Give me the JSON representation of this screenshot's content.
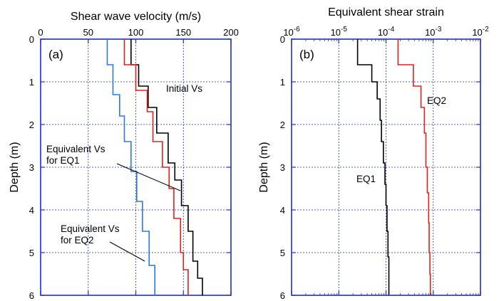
{
  "chart_data": [
    {
      "type": "line",
      "panel_label": "(a)",
      "xlabel": "Shear wave velocity (m/s)",
      "ylabel": "Depth (m)",
      "xlim": [
        0,
        200
      ],
      "ylim": [
        6,
        0
      ],
      "x_position": "top",
      "x_ticks": [
        0,
        50,
        100,
        150,
        200
      ],
      "y_ticks": [
        0,
        1,
        2,
        3,
        4,
        5,
        6
      ],
      "grid": true,
      "series": [
        {
          "name": "Initial Vs",
          "color": "#000000",
          "x": [
            95,
            95,
            103,
            103,
            113,
            113,
            122,
            122,
            134,
            134,
            141,
            141,
            148,
            148,
            155,
            155,
            160,
            160,
            165,
            165,
            170,
            170
          ],
          "y": [
            0,
            0.6,
            0.6,
            1.1,
            1.1,
            1.6,
            1.6,
            2.2,
            2.2,
            2.9,
            2.9,
            3.3,
            3.3,
            3.9,
            3.9,
            4.5,
            4.5,
            5.2,
            5.2,
            5.6,
            5.6,
            6
          ]
        },
        {
          "name": "Equivalent Vs for EQ1",
          "color": "#e0201c",
          "x": [
            88,
            88,
            100,
            100,
            112,
            112,
            118,
            118,
            128,
            128,
            135,
            135,
            140,
            140,
            147,
            147,
            150,
            150,
            155,
            155
          ],
          "y": [
            0,
            0.6,
            0.6,
            1.2,
            1.2,
            1.7,
            1.7,
            2.4,
            2.4,
            3.0,
            3.0,
            3.5,
            3.5,
            4.2,
            4.2,
            5.0,
            5.0,
            5.4,
            5.4,
            6
          ]
        },
        {
          "name": "Equivalent Vs for EQ2",
          "color": "#2a7bdc",
          "x": [
            70,
            70,
            76,
            76,
            83,
            83,
            88,
            88,
            95,
            95,
            101,
            101,
            107,
            107,
            114,
            114,
            120,
            120
          ],
          "y": [
            0,
            0.6,
            0.6,
            1.3,
            1.3,
            1.8,
            1.8,
            2.4,
            2.4,
            3.1,
            3.1,
            3.8,
            3.8,
            4.5,
            4.5,
            5.3,
            5.3,
            6
          ]
        }
      ],
      "annotations": [
        {
          "lines": [
            "Initial Vs"
          ]
        },
        {
          "lines": [
            "Equivalent Vs",
            "for EQ1"
          ]
        },
        {
          "lines": [
            "Equivalent Vs",
            "for EQ2"
          ]
        }
      ]
    },
    {
      "type": "line",
      "panel_label": "(b)",
      "xlabel": "Equivalent shear strain",
      "ylabel": "Depth (m)",
      "xlim": [
        1e-06,
        0.01
      ],
      "xscale": "log",
      "ylim": [
        6,
        0
      ],
      "x_position": "top",
      "x_ticks": [
        {
          "value": 1e-06,
          "base": "10",
          "exp": "-6"
        },
        {
          "value": 1e-05,
          "base": "10",
          "exp": "-5"
        },
        {
          "value": 0.0001,
          "base": "10",
          "exp": "-4"
        },
        {
          "value": 0.001,
          "base": "10",
          "exp": "-3"
        },
        {
          "value": 0.01,
          "base": "10",
          "exp": "-2"
        }
      ],
      "y_ticks": [
        0,
        1,
        2,
        3,
        4,
        5,
        6
      ],
      "grid": true,
      "series": [
        {
          "name": "EQ1",
          "color": "#000000",
          "x": [
            2.5e-05,
            2.5e-05,
            5e-05,
            5e-05,
            6.5e-05,
            6.5e-05,
            7.5e-05,
            7.5e-05,
            8e-05,
            8e-05,
            8.8e-05,
            8.8e-05,
            9.5e-05,
            9.5e-05,
            0.0001,
            0.0001,
            0.000105,
            0.000105,
            0.00011,
            0.00011,
            0.000115,
            0.000115
          ],
          "y": [
            0,
            0.6,
            0.6,
            1.0,
            1.0,
            1.4,
            1.4,
            1.9,
            1.9,
            2.4,
            2.4,
            2.9,
            2.9,
            3.4,
            3.4,
            3.9,
            3.9,
            4.5,
            4.5,
            5.1,
            5.1,
            6
          ]
        },
        {
          "name": "EQ2",
          "color": "#e0201c",
          "x": [
            0.00018,
            0.00018,
            0.00038,
            0.00038,
            0.00055,
            0.00055,
            0.00065,
            0.00065,
            0.0007,
            0.0007,
            0.00075,
            0.00075,
            0.0008,
            0.0008,
            0.00082,
            0.00082,
            0.00085,
            0.00085,
            0.00087,
            0.00087
          ],
          "y": [
            0,
            0.6,
            0.6,
            1.1,
            1.1,
            1.6,
            1.6,
            2.2,
            2.2,
            3.0,
            3.0,
            3.6,
            3.6,
            4.3,
            4.3,
            5.0,
            5.0,
            5.5,
            5.5,
            6
          ]
        }
      ],
      "annotations": [
        {
          "lines": [
            "EQ2"
          ]
        },
        {
          "lines": [
            "EQ1"
          ]
        }
      ]
    }
  ]
}
